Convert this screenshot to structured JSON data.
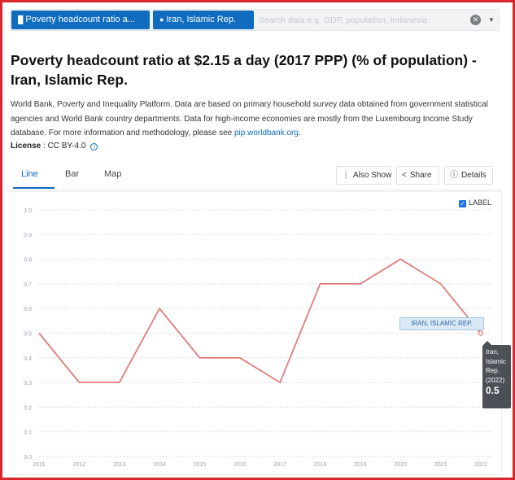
{
  "topbar": {
    "indicator_chip": "Poverty headcount ratio a...",
    "country_chip": "Iran, Islamic Rep.",
    "search_placeholder": "Search data e.g. GDP, population, Indonesia",
    "clear_icon": "close-icon",
    "dropdown_icon": "chevron-down-icon"
  },
  "page": {
    "title": "Poverty headcount ratio at $2.15 a day (2017 PPP) (% of population) - Iran, Islamic Rep.",
    "description": "World Bank, Poverty and Inequality Platform. Data are based on primary household survey data obtained from government statistical agencies and World Bank country departments. Data for high-income economies are mostly from the Luxembourg Income Study database. For more information and methodology, please see",
    "description_link": "pip.worldbank.org",
    "description_end": ".",
    "license_label": "License",
    "license_value": ": CC BY-4.0"
  },
  "tabs": [
    {
      "label": "Line",
      "active": true
    },
    {
      "label": "Bar",
      "active": false
    },
    {
      "label": "Map",
      "active": false
    }
  ],
  "toolbar": {
    "also_show": "Also Show",
    "share": "Share",
    "details": "Details"
  },
  "chart": {
    "label_toggle": "LABEL",
    "label_checked": true,
    "series_callout": "IRAN, ISLAMIC REP.",
    "tooltip_country": "Iran, Islamic Rep.",
    "tooltip_year": "(2022)",
    "tooltip_value": "0.5"
  },
  "colors": {
    "accent": "#0f6cbf",
    "line": "#e07b7b",
    "frame": "#d9262c"
  },
  "chart_data": {
    "type": "line",
    "x": [
      "2011",
      "2012",
      "2013",
      "2014",
      "2015",
      "2016",
      "2017",
      "2018",
      "2019",
      "2020",
      "2021",
      "2022"
    ],
    "series": [
      {
        "name": "IRAN, ISLAMIC REP.",
        "values": [
          0.5,
          0.3,
          0.3,
          0.6,
          0.4,
          0.4,
          0.3,
          0.7,
          0.7,
          0.8,
          0.7,
          0.5
        ]
      }
    ],
    "y_ticks": [
      "0.0",
      "0.1",
      "0.2",
      "0.3",
      "0.4",
      "0.5",
      "0.6",
      "0.7",
      "0.8",
      "0.9",
      "1.0"
    ],
    "ylim": [
      0,
      1.0
    ],
    "grid": true
  }
}
